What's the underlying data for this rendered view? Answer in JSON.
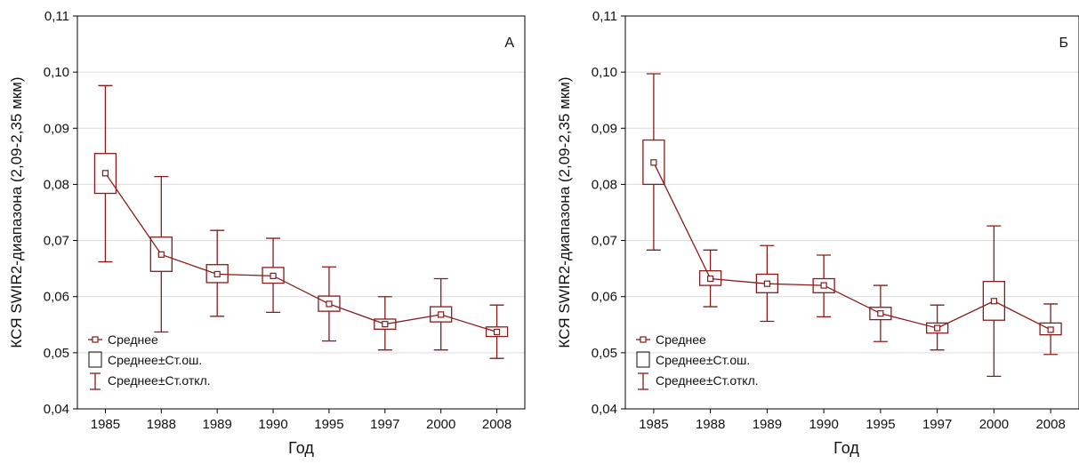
{
  "chart_data": [
    {
      "type": "boxplot",
      "panel_label": "А",
      "xlabel": "Год",
      "ylabel": "КСЯ SWIR2-диапазона (2,09-2,35 мкм)",
      "ylim": [
        0.04,
        0.11
      ],
      "y_ticks": [
        "0,04",
        "0,05",
        "0,06",
        "0,07",
        "0,08",
        "0,09",
        "0,10",
        "0,11"
      ],
      "grid": "horizontal",
      "legend_position": "bottom-left",
      "categories": [
        "1985",
        "1988",
        "1989",
        "1990",
        "1995",
        "1997",
        "2000",
        "2008"
      ],
      "mean": [
        0.082,
        0.0675,
        0.064,
        0.0637,
        0.0587,
        0.0551,
        0.0568,
        0.0537
      ],
      "se_low": [
        0.0784,
        0.0645,
        0.0625,
        0.0624,
        0.0574,
        0.0542,
        0.0555,
        0.0529
      ],
      "se_high": [
        0.0855,
        0.0706,
        0.0657,
        0.0652,
        0.0601,
        0.056,
        0.0582,
        0.0546
      ],
      "sd_low": [
        0.0662,
        0.0537,
        0.0565,
        0.0572,
        0.0521,
        0.0505,
        0.0505,
        0.049
      ],
      "sd_high": [
        0.0976,
        0.0814,
        0.0718,
        0.0704,
        0.0653,
        0.06,
        0.0632,
        0.0585
      ],
      "legend": [
        "Среднее",
        "Среднее±Ст.ош.",
        "Среднее±Ст.откл."
      ]
    },
    {
      "type": "boxplot",
      "panel_label": "Б",
      "xlabel": "Год",
      "ylabel": "КСЯ SWIR2-диапазона (2,09-2,35 мкм)",
      "ylim": [
        0.04,
        0.11
      ],
      "y_ticks": [
        "0,04",
        "0,05",
        "0,06",
        "0,07",
        "0,08",
        "0,09",
        "0,10",
        "0,11"
      ],
      "grid": "horizontal",
      "legend_position": "bottom-left",
      "categories": [
        "1985",
        "1988",
        "1989",
        "1990",
        "1995",
        "1997",
        "2000",
        "2008"
      ],
      "mean": [
        0.0839,
        0.0632,
        0.0623,
        0.062,
        0.057,
        0.0544,
        0.0592,
        0.0541
      ],
      "se_low": [
        0.08,
        0.062,
        0.0607,
        0.0607,
        0.0559,
        0.0535,
        0.0558,
        0.0532
      ],
      "se_high": [
        0.0879,
        0.0646,
        0.064,
        0.0632,
        0.0581,
        0.0553,
        0.0627,
        0.0553
      ],
      "sd_low": [
        0.0683,
        0.0582,
        0.0556,
        0.0564,
        0.052,
        0.0505,
        0.0458,
        0.0497
      ],
      "sd_high": [
        0.0997,
        0.0683,
        0.0691,
        0.0674,
        0.062,
        0.0585,
        0.0726,
        0.0587
      ],
      "legend": [
        "Среднее",
        "Среднее±Ст.ош.",
        "Среднее±Ст.откл."
      ]
    }
  ],
  "colors": {
    "series": "#8b1a1a",
    "grid": "#dcdcdc",
    "axis": "#000000"
  }
}
